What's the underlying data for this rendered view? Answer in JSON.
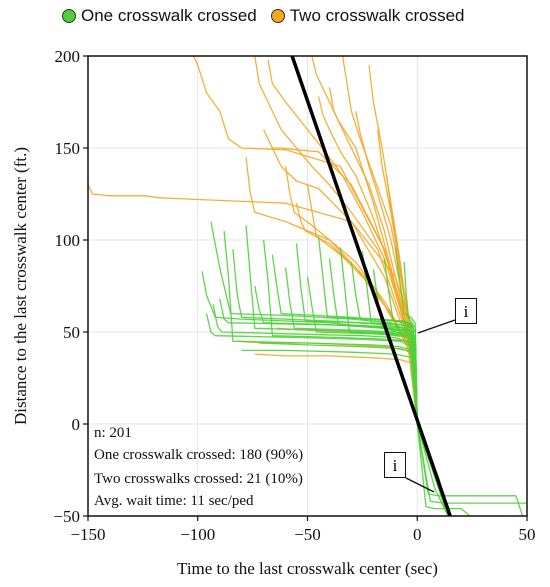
{
  "legend": [
    {
      "label": "One crosswalk crossed",
      "color": "#4cd137"
    },
    {
      "label": "Two crosswalk crossed",
      "color": "#f5a623"
    }
  ],
  "stats": {
    "n": "n: 201",
    "one": "One crosswalk crossed: 180 (90%)",
    "two": "Two crosswalks crossed: 21 (10%)",
    "wait": "Avg. wait time:  11 sec/ped"
  },
  "callouts": [
    "i",
    "i"
  ],
  "chart_data": {
    "type": "line",
    "xlabel": "Time to the last crosswalk center (sec)",
    "ylabel": "Distance to the last crosswalk center (ft.)",
    "xlim": [
      -150,
      50
    ],
    "ylim": [
      -50,
      200
    ],
    "xticks": [
      -150,
      -100,
      -50,
      0,
      50
    ],
    "yticks": [
      -50,
      0,
      50,
      100,
      150,
      200
    ],
    "grid": true,
    "reference_line": {
      "name": "",
      "color": "#000000",
      "x": [
        -57,
        15
      ],
      "y": [
        200,
        -50
      ]
    },
    "series": [
      {
        "group": "one",
        "color": "#4cd137",
        "values_x": [
          -98,
          -96,
          -92,
          -80,
          -40,
          -15,
          -4,
          0,
          8,
          14
        ],
        "values_y": [
          83,
          70,
          58,
          57,
          55,
          52,
          48,
          0,
          -35,
          -50
        ]
      },
      {
        "group": "one",
        "color": "#4cd137",
        "values_x": [
          -94,
          -90,
          -85,
          -60,
          -30,
          -12,
          -3,
          0,
          10,
          14
        ],
        "values_y": [
          110,
          85,
          60,
          59,
          57,
          55,
          50,
          0,
          -30,
          -50
        ]
      },
      {
        "group": "one",
        "color": "#4cd137",
        "values_x": [
          -93,
          -91,
          -89,
          -60,
          -25,
          -10,
          -3,
          0,
          14
        ],
        "values_y": [
          65,
          53,
          50,
          49,
          48,
          47,
          44,
          0,
          -50
        ]
      },
      {
        "group": "one",
        "color": "#4cd137",
        "values_x": [
          -88,
          -86,
          -84,
          -50,
          -20,
          -8,
          -2,
          0,
          14
        ],
        "values_y": [
          105,
          80,
          45,
          44,
          43,
          42,
          40,
          0,
          -50
        ]
      },
      {
        "group": "one",
        "color": "#4cd137",
        "values_x": [
          -84,
          -82,
          -80,
          -40,
          -15,
          -5,
          -1,
          0,
          14
        ],
        "values_y": [
          95,
          70,
          58,
          56,
          54,
          52,
          48,
          0,
          -50
        ]
      },
      {
        "group": "one",
        "color": "#4cd137",
        "values_x": [
          -78,
          -76,
          -74,
          -45,
          -20,
          -7,
          -2,
          0,
          14
        ],
        "values_y": [
          108,
          80,
          52,
          51,
          50,
          49,
          45,
          0,
          -50
        ]
      },
      {
        "group": "one",
        "color": "#4cd137",
        "values_x": [
          -74,
          -72,
          -70,
          -40,
          -15,
          -5,
          -1,
          0,
          14
        ],
        "values_y": [
          75,
          62,
          55,
          54,
          52,
          50,
          46,
          0,
          -50
        ]
      },
      {
        "group": "one",
        "color": "#4cd137",
        "values_x": [
          -70,
          -68,
          -66,
          -35,
          -12,
          -4,
          -1,
          0,
          14
        ],
        "values_y": [
          100,
          78,
          48,
          47,
          46,
          45,
          42,
          0,
          -50
        ]
      },
      {
        "group": "one",
        "color": "#4cd137",
        "values_x": [
          -66,
          -64,
          -62,
          -30,
          -10,
          -3,
          -1,
          0,
          14
        ],
        "values_y": [
          92,
          75,
          60,
          58,
          56,
          54,
          50,
          0,
          -50
        ]
      },
      {
        "group": "one",
        "color": "#4cd137",
        "values_x": [
          -60,
          -58,
          -56,
          -28,
          -10,
          -3,
          -1,
          0,
          14
        ],
        "values_y": [
          85,
          66,
          52,
          51,
          50,
          49,
          46,
          0,
          -50
        ]
      },
      {
        "group": "one",
        "color": "#4cd137",
        "values_x": [
          -55,
          -53,
          -51,
          -25,
          -8,
          -2,
          0,
          14
        ],
        "values_y": [
          98,
          74,
          56,
          55,
          54,
          53,
          0,
          -50
        ]
      },
      {
        "group": "one",
        "color": "#4cd137",
        "values_x": [
          -50,
          -48,
          -46,
          -20,
          -7,
          -2,
          0,
          14
        ],
        "values_y": [
          80,
          64,
          50,
          49,
          48,
          46,
          0,
          -50
        ]
      },
      {
        "group": "one",
        "color": "#4cd137",
        "values_x": [
          -45,
          -43,
          -41,
          -18,
          -6,
          -2,
          0,
          14
        ],
        "values_y": [
          102,
          80,
          58,
          57,
          56,
          54,
          0,
          -50
        ]
      },
      {
        "group": "one",
        "color": "#4cd137",
        "values_x": [
          -40,
          -38,
          -36,
          -15,
          -5,
          -1,
          0,
          14
        ],
        "values_y": [
          90,
          70,
          54,
          53,
          52,
          50,
          0,
          -50
        ]
      },
      {
        "group": "one",
        "color": "#4cd137",
        "values_x": [
          -35,
          -33,
          -31,
          -12,
          -4,
          -1,
          0,
          14
        ],
        "values_y": [
          96,
          74,
          50,
          49,
          48,
          46,
          0,
          -50
        ]
      },
      {
        "group": "one",
        "color": "#4cd137",
        "values_x": [
          -30,
          -28,
          -26,
          -10,
          -3,
          0,
          14
        ],
        "values_y": [
          88,
          70,
          57,
          56,
          54,
          0,
          -50
        ]
      },
      {
        "group": "one",
        "color": "#4cd137",
        "values_x": [
          -25,
          -23,
          -21,
          -8,
          -2,
          0,
          14
        ],
        "values_y": [
          94,
          75,
          55,
          54,
          52,
          0,
          -50
        ]
      },
      {
        "group": "one",
        "color": "#4cd137",
        "values_x": [
          -20,
          -18,
          -16,
          -6,
          -2,
          0,
          14
        ],
        "values_y": [
          84,
          68,
          52,
          51,
          50,
          0,
          -50
        ]
      },
      {
        "group": "one",
        "color": "#4cd137",
        "values_x": [
          -15,
          -13,
          -11,
          -5,
          -1,
          0,
          14
        ],
        "values_y": [
          90,
          72,
          56,
          55,
          53,
          0,
          -50
        ]
      },
      {
        "group": "one",
        "color": "#4cd137",
        "values_x": [
          -10,
          -8,
          -6,
          -3,
          -1,
          0,
          14
        ],
        "values_y": [
          96,
          78,
          60,
          58,
          55,
          0,
          -50
        ]
      },
      {
        "group": "one",
        "color": "#4cd137",
        "values_x": [
          -6,
          -5,
          -4,
          -2,
          0,
          14
        ],
        "values_y": [
          88,
          70,
          58,
          54,
          0,
          -50
        ]
      },
      {
        "group": "one",
        "color": "#4cd137",
        "values_x": [
          -96,
          -94,
          -92,
          -55,
          -25,
          -8,
          -2,
          0,
          14
        ],
        "values_y": [
          60,
          50,
          48,
          47,
          46,
          45,
          42,
          0,
          -50
        ]
      },
      {
        "group": "one",
        "color": "#4cd137",
        "values_x": [
          -90,
          -88,
          -86,
          -45,
          -18,
          -6,
          -1,
          0,
          14
        ],
        "values_y": [
          68,
          57,
          55,
          54,
          53,
          51,
          47,
          0,
          -50
        ]
      },
      {
        "group": "one",
        "color": "#4cd137",
        "values_x": [
          -80,
          -60,
          -30,
          -10,
          -2,
          0,
          14
        ],
        "values_y": [
          40,
          40,
          39,
          38,
          36,
          0,
          -50
        ]
      },
      {
        "group": "one",
        "color": "#4cd137",
        "values_x": [
          -72,
          -50,
          -25,
          -8,
          -2,
          0,
          14
        ],
        "values_y": [
          44,
          43,
          42,
          41,
          39,
          0,
          -50
        ]
      },
      {
        "group": "one",
        "color": "#4cd137",
        "values_x": [
          0,
          5,
          10,
          30,
          45,
          48
        ],
        "values_y": [
          0,
          -38,
          -39,
          -39,
          -39,
          -50
        ]
      },
      {
        "group": "one",
        "color": "#4cd137",
        "values_x": [
          0,
          6,
          12,
          30,
          50
        ],
        "values_y": [
          0,
          -42,
          -43,
          -43,
          -43
        ]
      },
      {
        "group": "one",
        "color": "#4cd137",
        "values_x": [
          0,
          4,
          8,
          20,
          24
        ],
        "values_y": [
          0,
          -45,
          -46,
          -46,
          -50
        ]
      },
      {
        "group": "two",
        "color": "#f5a623",
        "values_x": [
          -150,
          -148,
          -140,
          -130,
          -124,
          -118,
          -100,
          -60,
          -30,
          -10,
          -3,
          0,
          14
        ],
        "values_y": [
          130,
          125,
          124,
          124,
          124,
          123,
          122,
          120,
          110,
          80,
          55,
          0,
          -50
        ]
      },
      {
        "group": "two",
        "color": "#f5a623",
        "values_x": [
          -102,
          -100,
          -96,
          -90,
          -86,
          -80,
          -60,
          -35,
          -15,
          -5,
          0,
          14
        ],
        "values_y": [
          200,
          195,
          180,
          170,
          155,
          150,
          149,
          140,
          95,
          50,
          0,
          -50
        ]
      },
      {
        "group": "two",
        "color": "#f5a623",
        "values_x": [
          -74,
          -72,
          -68,
          -62,
          -55,
          -48,
          -40,
          -30,
          -18,
          -8,
          -2,
          0,
          14
        ],
        "values_y": [
          200,
          185,
          175,
          160,
          150,
          140,
          130,
          115,
          95,
          60,
          40,
          0,
          -50
        ]
      },
      {
        "group": "two",
        "color": "#f5a623",
        "values_x": [
          -68,
          -66,
          -60,
          -50,
          -42,
          -34,
          -25,
          -15,
          -7,
          -2,
          0,
          14
        ],
        "values_y": [
          198,
          185,
          175,
          160,
          148,
          135,
          115,
          90,
          60,
          40,
          0,
          -50
        ]
      },
      {
        "group": "two",
        "color": "#f5a623",
        "values_x": [
          -48,
          -46,
          -42,
          -36,
          -28,
          -20,
          -12,
          -6,
          -2,
          0,
          14
        ],
        "values_y": [
          200,
          190,
          180,
          165,
          150,
          120,
          85,
          55,
          35,
          0,
          -50
        ]
      },
      {
        "group": "two",
        "color": "#f5a623",
        "values_x": [
          -45,
          -43,
          -40,
          -35,
          -28,
          -20,
          -10,
          -3,
          0,
          14
        ],
        "values_y": [
          178,
          168,
          160,
          148,
          135,
          112,
          75,
          45,
          0,
          -50
        ]
      },
      {
        "group": "two",
        "color": "#f5a623",
        "values_x": [
          -40,
          -38,
          -34,
          -28,
          -22,
          -15,
          -8,
          -2,
          0,
          14
        ],
        "values_y": [
          183,
          170,
          160,
          145,
          130,
          105,
          70,
          40,
          0,
          -50
        ]
      },
      {
        "group": "two",
        "color": "#f5a623",
        "values_x": [
          -34,
          -32,
          -30,
          -26,
          -20,
          -12,
          -6,
          -2,
          0,
          14
        ],
        "values_y": [
          200,
          185,
          170,
          155,
          135,
          108,
          70,
          40,
          0,
          -50
        ]
      },
      {
        "group": "two",
        "color": "#f5a623",
        "values_x": [
          -28,
          -26,
          -22,
          -18,
          -12,
          -6,
          -2,
          0,
          14
        ],
        "values_y": [
          170,
          158,
          140,
          125,
          100,
          65,
          40,
          0,
          -50
        ]
      },
      {
        "group": "two",
        "color": "#f5a623",
        "values_x": [
          -22,
          -20,
          -16,
          -12,
          -8,
          -4,
          -1,
          0,
          14
        ],
        "values_y": [
          195,
          175,
          150,
          120,
          90,
          55,
          35,
          0,
          -50
        ]
      },
      {
        "group": "two",
        "color": "#f5a623",
        "values_x": [
          -18,
          -16,
          -12,
          -8,
          -4,
          -1,
          0,
          14
        ],
        "values_y": [
          160,
          140,
          115,
          85,
          55,
          35,
          0,
          -50
        ]
      },
      {
        "group": "two",
        "color": "#f5a623",
        "values_x": [
          -14,
          -12,
          -9,
          -6,
          -3,
          -1,
          0,
          14
        ],
        "values_y": [
          135,
          118,
          96,
          72,
          50,
          35,
          0,
          -50
        ]
      },
      {
        "group": "two",
        "color": "#f5a623",
        "values_x": [
          -66,
          -64,
          -62,
          -55,
          -45,
          -30,
          -15,
          -6,
          -1,
          0,
          14
        ],
        "values_y": [
          150,
          145,
          140,
          132,
          128,
          110,
          80,
          50,
          35,
          0,
          -50
        ]
      },
      {
        "group": "two",
        "color": "#f5a623",
        "values_x": [
          -60,
          -58,
          -56,
          -48,
          -40,
          -28,
          -14,
          -5,
          -1,
          0,
          14
        ],
        "values_y": [
          140,
          125,
          115,
          108,
          100,
          88,
          65,
          45,
          35,
          0,
          -50
        ]
      },
      {
        "group": "two",
        "color": "#f5a623",
        "values_x": [
          -70,
          -68,
          -66,
          -64,
          -62,
          -55,
          -45,
          -30,
          -15,
          -5,
          -1,
          0,
          14
        ],
        "values_y": [
          160,
          155,
          150,
          150,
          150,
          149,
          148,
          130,
          95,
          55,
          35,
          0,
          -50
        ]
      },
      {
        "group": "two",
        "color": "#f5a623",
        "values_x": [
          -78,
          -76,
          -74,
          -60,
          -40,
          -20,
          -8,
          -2,
          0,
          14
        ],
        "values_y": [
          145,
          125,
          115,
          110,
          100,
          75,
          50,
          35,
          0,
          -50
        ]
      },
      {
        "group": "two",
        "color": "#f5a623",
        "values_x": [
          -55,
          -53,
          -51,
          -40,
          -28,
          -15,
          -5,
          -1,
          0,
          14
        ],
        "values_y": [
          120,
          110,
          105,
          98,
          85,
          65,
          45,
          35,
          0,
          -50
        ]
      },
      {
        "group": "two",
        "color": "#f5a623",
        "values_x": [
          -50,
          -48,
          -46,
          -35,
          -25,
          -12,
          -4,
          -1,
          0,
          14
        ],
        "values_y": [
          130,
          116,
          102,
          92,
          80,
          60,
          42,
          34,
          0,
          -50
        ]
      },
      {
        "group": "two",
        "color": "#f5a623",
        "values_x": [
          -82,
          -70,
          -50,
          -30,
          -15,
          -5,
          -1,
          0,
          14
        ],
        "values_y": [
          45,
          44,
          44,
          43,
          42,
          40,
          36,
          0,
          -50
        ]
      },
      {
        "group": "two",
        "color": "#f5a623",
        "values_x": [
          -74,
          -60,
          -40,
          -20,
          -8,
          -2,
          0,
          14
        ],
        "values_y": [
          38,
          37,
          37,
          36,
          35,
          33,
          0,
          -50
        ]
      },
      {
        "group": "two",
        "color": "#f5a623",
        "values_x": [
          -64,
          -50,
          -30,
          -15,
          -5,
          -1,
          0,
          14
        ],
        "values_y": [
          52,
          51,
          50,
          49,
          47,
          44,
          0,
          -50
        ]
      }
    ]
  }
}
